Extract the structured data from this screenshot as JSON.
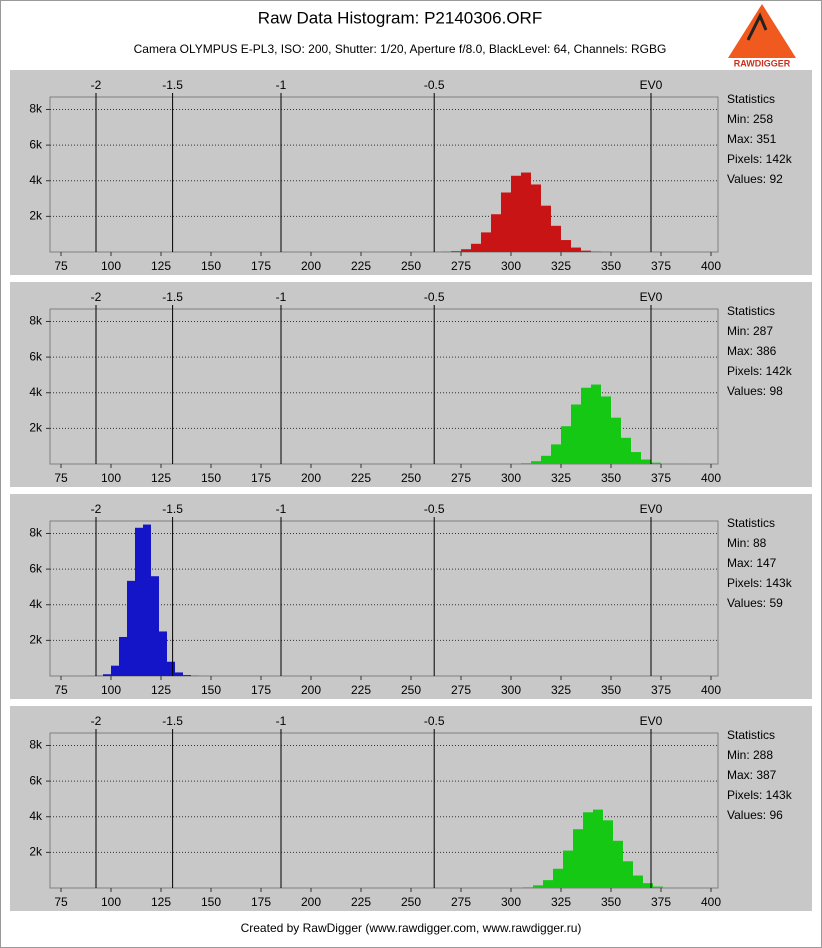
{
  "title": "Raw Data Histogram: P2140306.ORF",
  "subtitle": "Camera OLYMPUS E-PL3, ISO: 200, Shutter: 1/20, Aperture f/8.0, BlackLevel: 64, Channels: RGBG",
  "logo": "RAWDIGGER",
  "footer": "Created by RawDigger (www.rawdigger.com, www.rawdigger.ru)",
  "chart_data": [
    {
      "type": "histogram",
      "color": "#c81414",
      "grid": true,
      "bins": [
        265,
        270,
        275,
        280,
        285,
        290,
        295,
        300,
        305,
        310,
        315,
        320,
        325,
        330,
        335,
        340,
        345,
        350
      ],
      "values": [
        10,
        44,
        156,
        460,
        1100,
        2120,
        3340,
        4280,
        4460,
        3790,
        2600,
        1470,
        670,
        250,
        75,
        20,
        5
      ],
      "xlim": [
        69.5,
        403.5
      ],
      "ylim": [
        0,
        8700
      ],
      "xticks": [
        75,
        100,
        125,
        150,
        175,
        200,
        225,
        250,
        275,
        300,
        325,
        350,
        375,
        400
      ],
      "yticks": [
        {
          "value": 2000,
          "label": "2k"
        },
        {
          "value": 4000,
          "label": "4k"
        },
        {
          "value": 6000,
          "label": "6k"
        },
        {
          "value": 8000,
          "label": "8k"
        }
      ],
      "x2ticks": [
        {
          "value": 92.5,
          "label": "-2"
        },
        {
          "value": 130.8,
          "label": "-1.5"
        },
        {
          "value": 185,
          "label": "-1"
        },
        {
          "value": 261.6,
          "label": "-0.5"
        },
        {
          "value": 370,
          "label": "EV0"
        }
      ],
      "stats": [
        "Statistics",
        "Min: 258",
        "Max: 351",
        "Pixels: 142k",
        "Values: 92"
      ]
    },
    {
      "type": "histogram",
      "color": "#14c814",
      "grid": true,
      "bins": [
        300,
        305,
        310,
        315,
        320,
        325,
        330,
        335,
        340,
        345,
        350,
        355,
        360,
        365,
        370,
        375,
        380,
        385
      ],
      "values": [
        10,
        44,
        156,
        460,
        1100,
        2120,
        3340,
        4280,
        4460,
        3790,
        2600,
        1470,
        670,
        250,
        75,
        20,
        5
      ],
      "xlim": [
        69.5,
        403.5
      ],
      "ylim": [
        0,
        8700
      ],
      "xticks": [
        75,
        100,
        125,
        150,
        175,
        200,
        225,
        250,
        275,
        300,
        325,
        350,
        375,
        400
      ],
      "yticks": [
        {
          "value": 2000,
          "label": "2k"
        },
        {
          "value": 4000,
          "label": "4k"
        },
        {
          "value": 6000,
          "label": "6k"
        },
        {
          "value": 8000,
          "label": "8k"
        }
      ],
      "x2ticks": [
        {
          "value": 92.5,
          "label": "-2"
        },
        {
          "value": 130.8,
          "label": "-1.5"
        },
        {
          "value": 185,
          "label": "-1"
        },
        {
          "value": 261.6,
          "label": "-0.5"
        },
        {
          "value": 370,
          "label": "EV0"
        }
      ],
      "stats": [
        "Statistics",
        "Min: 287",
        "Max: 386",
        "Pixels: 142k",
        "Values: 98"
      ]
    },
    {
      "type": "histogram",
      "color": "#1414c8",
      "grid": true,
      "bins": [
        88,
        92,
        96,
        100,
        104,
        108,
        112,
        116,
        120,
        124,
        128,
        132,
        136,
        140,
        144,
        148
      ],
      "values": [
        1,
        11,
        98,
        580,
        2190,
        5340,
        8320,
        8500,
        5600,
        2500,
        800,
        200,
        50,
        10,
        2
      ],
      "xlim": [
        69.5,
        403.5
      ],
      "ylim": [
        0,
        8700
      ],
      "xticks": [
        75,
        100,
        125,
        150,
        175,
        200,
        225,
        250,
        275,
        300,
        325,
        350,
        375,
        400
      ],
      "yticks": [
        {
          "value": 2000,
          "label": "2k"
        },
        {
          "value": 4000,
          "label": "4k"
        },
        {
          "value": 6000,
          "label": "6k"
        },
        {
          "value": 8000,
          "label": "8k"
        }
      ],
      "x2ticks": [
        {
          "value": 92.5,
          "label": "-2"
        },
        {
          "value": 130.8,
          "label": "-1.5"
        },
        {
          "value": 185,
          "label": "-1"
        },
        {
          "value": 261.6,
          "label": "-0.5"
        },
        {
          "value": 370,
          "label": "EV0"
        }
      ],
      "stats": [
        "Statistics",
        "Min: 88",
        "Max: 147",
        "Pixels: 143k",
        "Values: 59"
      ]
    },
    {
      "type": "histogram",
      "color": "#14c814",
      "grid": true,
      "bins": [
        301,
        306,
        311,
        316,
        321,
        326,
        331,
        336,
        341,
        346,
        351,
        356,
        361,
        366,
        371,
        376,
        381,
        386
      ],
      "values": [
        8,
        40,
        150,
        440,
        1080,
        2100,
        3300,
        4250,
        4400,
        3800,
        2650,
        1500,
        700,
        270,
        80,
        22,
        6
      ],
      "xlim": [
        69.5,
        403.5
      ],
      "ylim": [
        0,
        8700
      ],
      "xticks": [
        75,
        100,
        125,
        150,
        175,
        200,
        225,
        250,
        275,
        300,
        325,
        350,
        375,
        400
      ],
      "yticks": [
        {
          "value": 2000,
          "label": "2k"
        },
        {
          "value": 4000,
          "label": "4k"
        },
        {
          "value": 6000,
          "label": "6k"
        },
        {
          "value": 8000,
          "label": "8k"
        }
      ],
      "x2ticks": [
        {
          "value": 92.5,
          "label": "-2"
        },
        {
          "value": 130.8,
          "label": "-1.5"
        },
        {
          "value": 185,
          "label": "-1"
        },
        {
          "value": 261.6,
          "label": "-0.5"
        },
        {
          "value": 370,
          "label": "EV0"
        }
      ],
      "stats": [
        "Statistics",
        "Min: 288",
        "Max: 387",
        "Pixels: 143k",
        "Values: 96"
      ]
    }
  ]
}
